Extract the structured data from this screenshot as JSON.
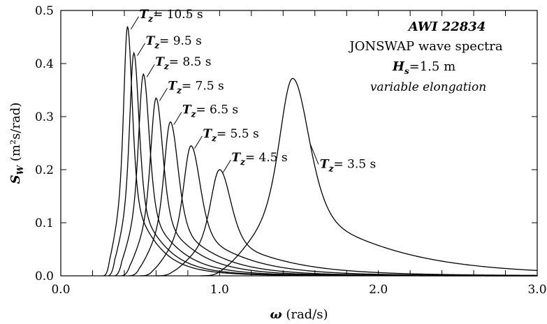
{
  "chart_data": {
    "type": "line",
    "title": "AWI 22834",
    "subtitle": "JONSWAP wave spectra",
    "annotation_hs": {
      "symbol": "H",
      "sub": "s",
      "text": "=1.5 m"
    },
    "annotation_note": "variable elongation",
    "xlabel": {
      "symbol": "ω",
      "text": " (rad/s)"
    },
    "ylabel": {
      "symbol": "S",
      "sub": "W",
      "text": " (m²s/rad)"
    },
    "xlim": [
      0,
      3
    ],
    "ylim": [
      0,
      0.5
    ],
    "x_ticks": [
      "0.0",
      "1.0",
      "2.0",
      "3.0"
    ],
    "y_ticks": [
      "0.0",
      "0.1",
      "0.2",
      "0.3",
      "0.4",
      "0.5"
    ],
    "grid": false,
    "legend": "inline labels",
    "series": [
      {
        "name": "T_z = 10.5 s",
        "label_prefix": "T",
        "label_sub": "z",
        "label_text": "= 10.5 s",
        "omega_start": 0.27,
        "omega_peak": 0.42,
        "peak": 0.47,
        "tail_at_3": 0.003
      },
      {
        "name": "T_z = 9.5 s",
        "label_prefix": "T",
        "label_sub": "z",
        "label_text": "= 9.5 s",
        "omega_start": 0.3,
        "omega_peak": 0.46,
        "peak": 0.42,
        "tail_at_3": 0.003
      },
      {
        "name": "T_z = 8.5 s",
        "label_prefix": "T",
        "label_sub": "z",
        "label_text": "= 8.5 s",
        "omega_start": 0.34,
        "omega_peak": 0.52,
        "peak": 0.38,
        "tail_at_3": 0.003
      },
      {
        "name": "T_z = 7.5 s",
        "label_prefix": "T",
        "label_sub": "z",
        "label_text": "= 7.5 s",
        "omega_start": 0.38,
        "omega_peak": 0.6,
        "peak": 0.335,
        "tail_at_3": 0.003
      },
      {
        "name": "T_z = 6.5 s",
        "label_prefix": "T",
        "label_sub": "z",
        "label_text": "= 6.5 s",
        "omega_start": 0.43,
        "omega_peak": 0.69,
        "peak": 0.29,
        "tail_at_3": 0.003
      },
      {
        "name": "T_z = 5.5 s",
        "label_prefix": "T",
        "label_sub": "z",
        "label_text": "= 5.5 s",
        "omega_start": 0.5,
        "omega_peak": 0.82,
        "peak": 0.245,
        "tail_at_3": 0.003
      },
      {
        "name": "T_z = 4.5 s",
        "label_prefix": "T",
        "label_sub": "z",
        "label_text": "= 4.5 s",
        "omega_start": 0.6,
        "omega_peak": 1.0,
        "peak": 0.2,
        "tail_at_3": 0.003
      },
      {
        "name": "T_z = 3.5 s",
        "label_prefix": "T",
        "label_sub": "z",
        "label_text": "= 3.5 s",
        "omega_start": 0.88,
        "omega_peak": 1.46,
        "peak": 0.372,
        "tail_at_3": 0.01
      }
    ]
  }
}
